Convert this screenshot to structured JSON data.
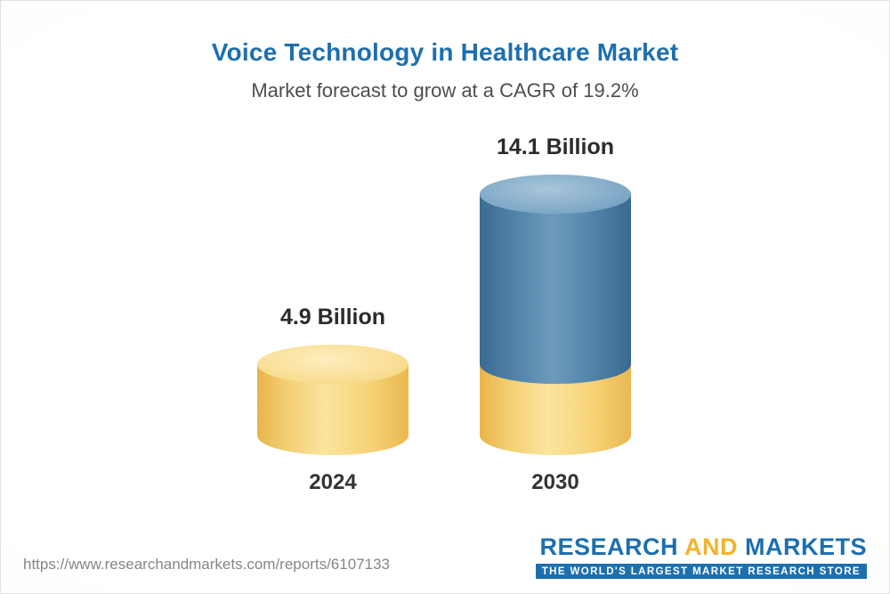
{
  "chart_data": {
    "type": "bar",
    "bar_style": "3d-cylinder",
    "title": "Voice Technology in Healthcare Market",
    "subtitle": "Market forecast to grow at a CAGR of 19.2%",
    "categories": [
      "2024",
      "2030"
    ],
    "values": [
      4.9,
      14.1
    ],
    "value_labels": [
      "4.9 Billion",
      "14.1 Billion"
    ],
    "ylim": [
      0,
      14.1
    ],
    "grid": false,
    "legend": "none",
    "stacks": [
      {
        "category": "2024",
        "segments": [
          {
            "value": 4.9,
            "color": "#F6CE6D"
          }
        ]
      },
      {
        "category": "2030",
        "segments": [
          {
            "value": 4.9,
            "color": "#F6CE6D"
          },
          {
            "value": 9.2,
            "color": "#4B7DA5"
          }
        ]
      }
    ]
  },
  "colors": {
    "title": "#1E6FAE",
    "subtitle": "#4D4D4D",
    "value_label": "#2B2B2B",
    "category_label": "#333333",
    "yellow_body": "#F6CE6D",
    "yellow_cap": "#F9DD92",
    "blue_body": "#4B7DA5",
    "blue_cap": "#7FA9C7",
    "footer_url": "#868686",
    "logo_blue": "#1E6FAE",
    "logo_gold": "#F2B32C"
  },
  "footer": {
    "url": "https://www.researchandmarkets.com/reports/6107133",
    "logo": {
      "word1": "RESEARCH",
      "word2": "AND",
      "word3": "MARKETS",
      "tagline": "THE WORLD'S LARGEST MARKET RESEARCH STORE"
    }
  }
}
